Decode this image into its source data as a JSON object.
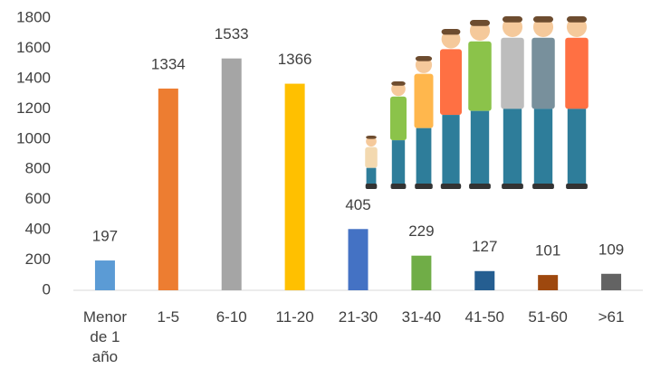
{
  "chart_data": {
    "type": "bar",
    "categories": [
      "Menor de 1 año",
      "1-5",
      "6-10",
      "11-20",
      "21-30",
      "31-40",
      "41-50",
      "51-60",
      ">61"
    ],
    "values": [
      197,
      1334,
      1533,
      1366,
      405,
      229,
      127,
      101,
      109
    ],
    "colors": [
      "#5b9bd5",
      "#ed7d31",
      "#a5a5a5",
      "#ffc000",
      "#4472c4",
      "#70ad47",
      "#255e91",
      "#9e480e",
      "#636363"
    ],
    "ylim": [
      0,
      1800
    ],
    "yticks": [
      0,
      200,
      400,
      600,
      800,
      1000,
      1200,
      1400,
      1600,
      1800
    ],
    "grid": false
  }
}
